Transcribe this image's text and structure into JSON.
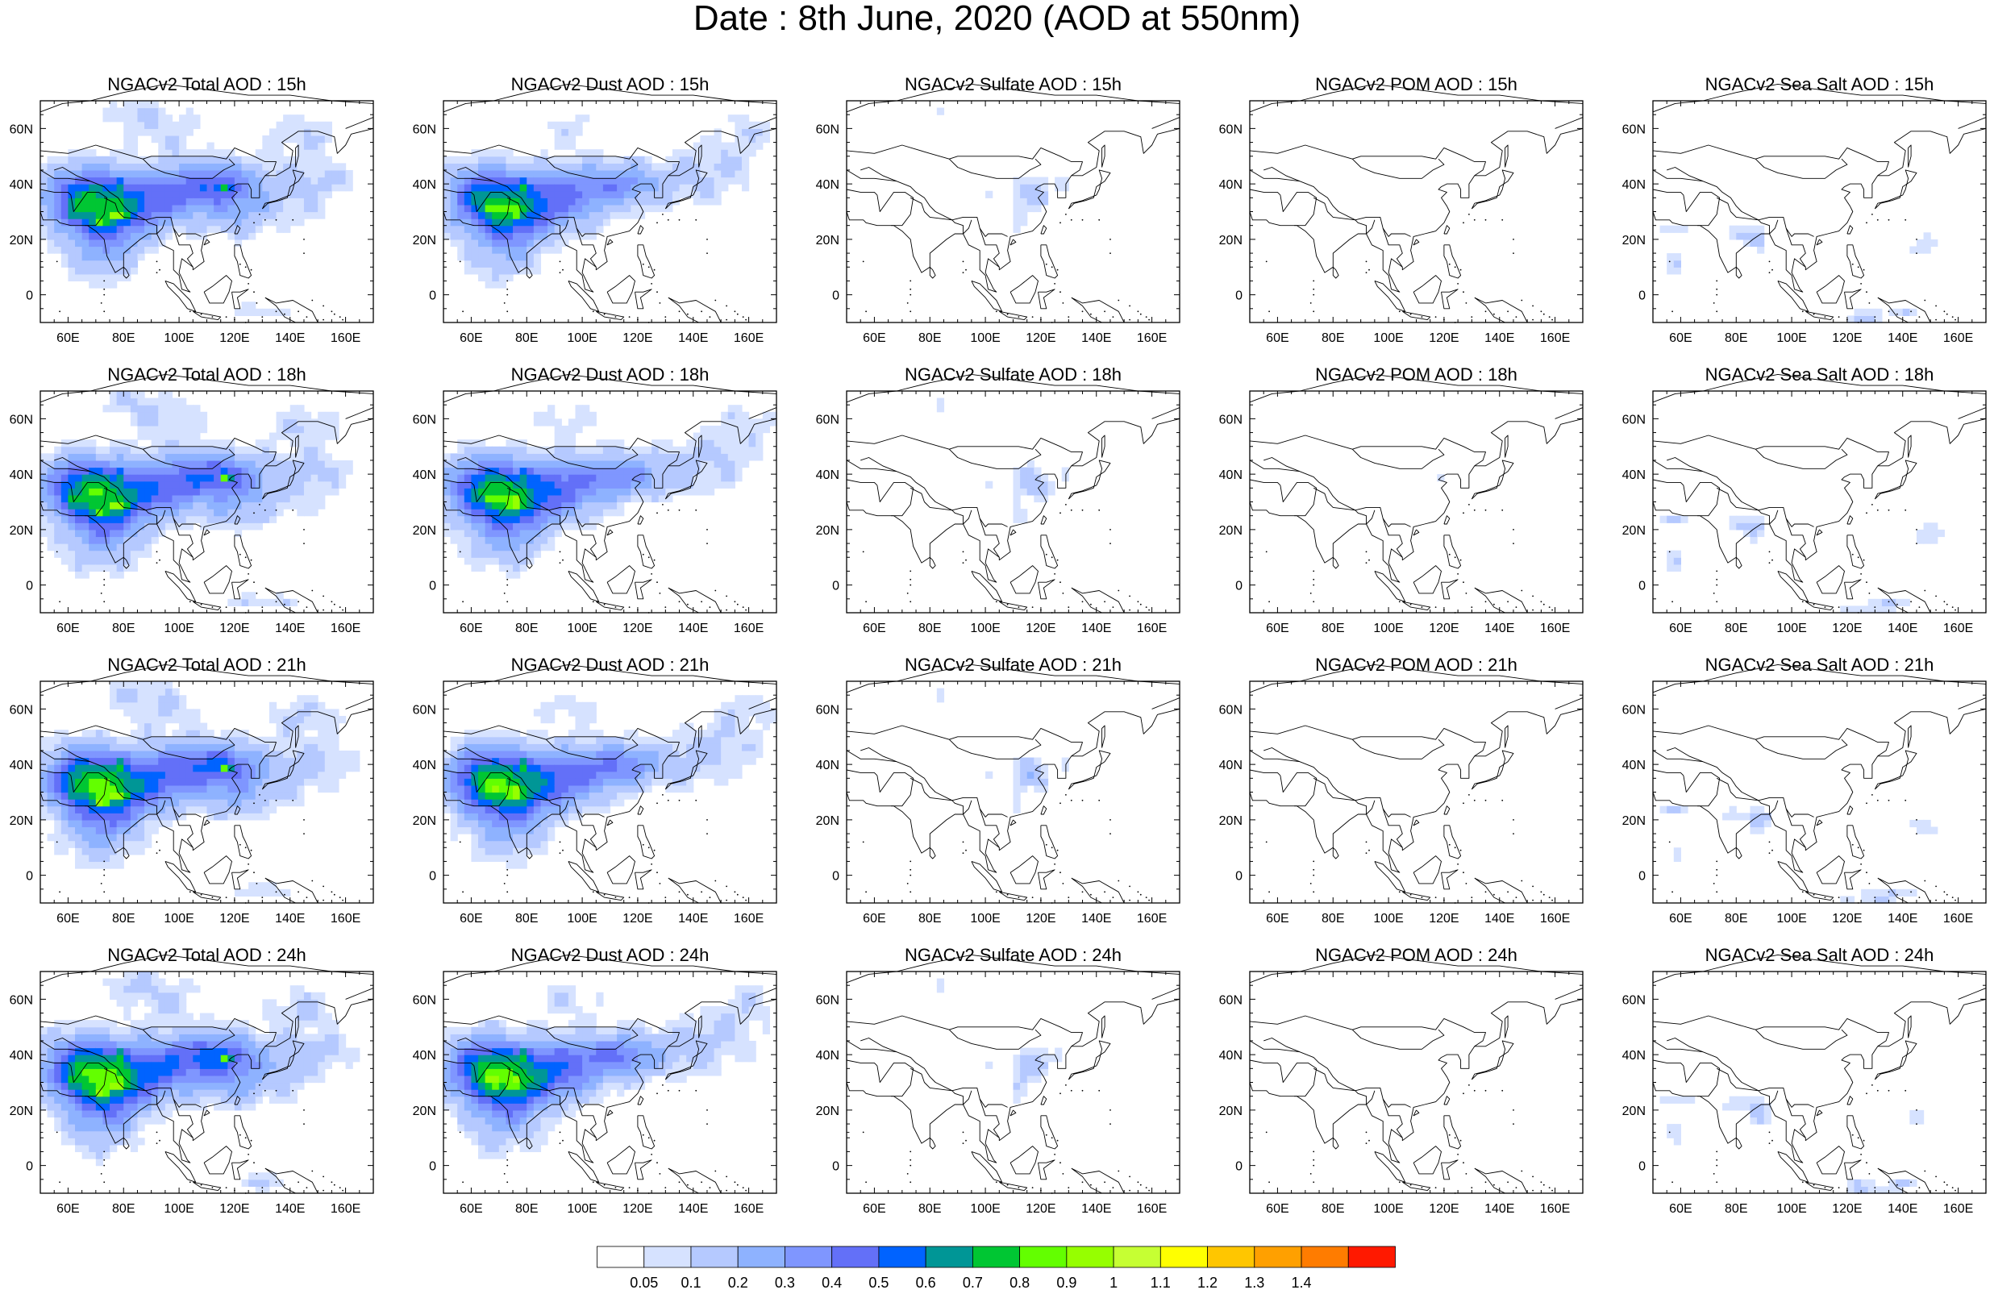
{
  "title": "Date : 8th June, 2020 (AOD at 550nm)",
  "panels": [
    {
      "title": "NGACv2 Total AOD : 15h",
      "species": "total",
      "time": "15h"
    },
    {
      "title": "NGACv2 Dust AOD : 15h",
      "species": "dust",
      "time": "15h"
    },
    {
      "title": "NGACv2 Sulfate AOD : 15h",
      "species": "sulfate",
      "time": "15h"
    },
    {
      "title": "NGACv2 POM AOD : 15h",
      "species": "pom",
      "time": "15h"
    },
    {
      "title": "NGACv2 Sea Salt AOD : 15h",
      "species": "seasalt",
      "time": "15h"
    },
    {
      "title": "NGACv2 Total AOD : 18h",
      "species": "total",
      "time": "18h"
    },
    {
      "title": "NGACv2 Dust AOD : 18h",
      "species": "dust",
      "time": "18h"
    },
    {
      "title": "NGACv2 Sulfate AOD : 18h",
      "species": "sulfate",
      "time": "18h"
    },
    {
      "title": "NGACv2 POM AOD : 18h",
      "species": "pom",
      "time": "18h"
    },
    {
      "title": "NGACv2 Sea Salt AOD : 18h",
      "species": "seasalt",
      "time": "18h"
    },
    {
      "title": "NGACv2 Total AOD : 21h",
      "species": "total",
      "time": "21h"
    },
    {
      "title": "NGACv2 Dust AOD : 21h",
      "species": "dust",
      "time": "21h"
    },
    {
      "title": "NGACv2 Sulfate AOD : 21h",
      "species": "sulfate",
      "time": "21h"
    },
    {
      "title": "NGACv2 POM AOD : 21h",
      "species": "pom",
      "time": "21h"
    },
    {
      "title": "NGACv2 Sea Salt AOD : 21h",
      "species": "seasalt",
      "time": "21h"
    },
    {
      "title": "NGACv2 Total AOD : 24h",
      "species": "total",
      "time": "24h"
    },
    {
      "title": "NGACv2 Dust AOD : 24h",
      "species": "dust",
      "time": "24h"
    },
    {
      "title": "NGACv2 Sulfate AOD : 24h",
      "species": "sulfate",
      "time": "24h"
    },
    {
      "title": "NGACv2 POM AOD : 24h",
      "species": "pom",
      "time": "24h"
    },
    {
      "title": "NGACv2 Sea Salt  AOD : 24h",
      "species": "seasalt",
      "time": "24h"
    }
  ],
  "map_extent": {
    "lon": [
      50,
      170
    ],
    "lat": [
      -10,
      70
    ]
  },
  "lon_ticks": [
    "60E",
    "80E",
    "100E",
    "120E",
    "140E",
    "160E"
  ],
  "lat_ticks": [
    "60N",
    "40N",
    "20N",
    "0"
  ],
  "colorbar": {
    "labels": [
      "0.05",
      "0.1",
      "0.2",
      "0.3",
      "0.4",
      "0.5",
      "0.6",
      "0.7",
      "0.8",
      "0.9",
      "1",
      "1.1",
      "1.2",
      "1.3",
      "1.4"
    ],
    "colors": [
      "#ffffff",
      "#d6e2ff",
      "#b5c9ff",
      "#8eb2ff",
      "#7f96ff",
      "#6370f8",
      "#0063ff",
      "#009696",
      "#00c633",
      "#63ff00",
      "#96ff00",
      "#c6ff33",
      "#ffff00",
      "#ffc600",
      "#ffa000",
      "#ff7c00",
      "#ff1900"
    ]
  }
}
